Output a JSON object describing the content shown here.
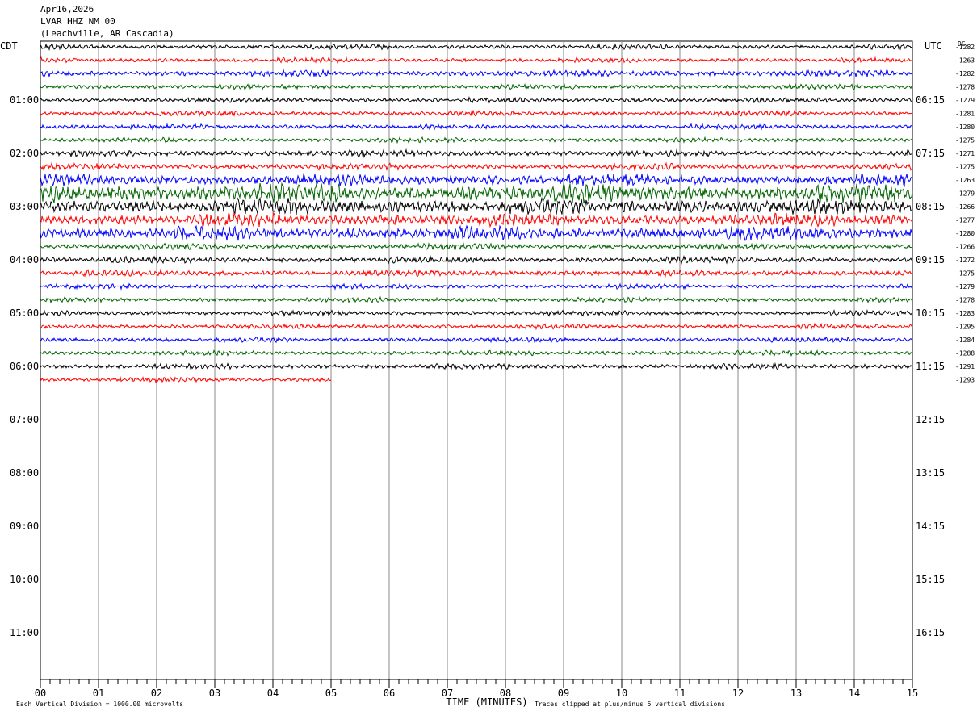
{
  "header": {
    "date": "Apr16,2026",
    "station": "LVAR HHZ NM 00",
    "location": "(Leachville, AR Cascadia)"
  },
  "chart_data": {
    "type": "line",
    "left_timezone_label": "CDT",
    "right_timezone_label": "UTC",
    "dc_label": "DC",
    "xlabel": "TIME (MINUTES)",
    "x_ticks": [
      "00",
      "01",
      "02",
      "03",
      "04",
      "05",
      "06",
      "07",
      "08",
      "09",
      "10",
      "11",
      "12",
      "13",
      "14",
      "15"
    ],
    "xlim": [
      0,
      15
    ],
    "left_hour_labels": [
      "01:00",
      "02:00",
      "03:00",
      "04:00",
      "05:00",
      "06:00",
      "07:00",
      "08:00",
      "09:00",
      "10:00",
      "11:00"
    ],
    "right_hour_labels": [
      "06:15",
      "07:15",
      "08:15",
      "09:15",
      "10:15",
      "11:15",
      "12:15",
      "13:15",
      "14:15",
      "15:15",
      "16:15"
    ],
    "trace_colors": [
      "#000000",
      "#ff0000",
      "#0000ff",
      "#006400"
    ],
    "dc_offsets": [
      "-1282",
      "-1263",
      "-1282",
      "-1278",
      "-1279",
      "-1281",
      "-1280",
      "-1275",
      "-1271",
      "-1275",
      "-1263",
      "-1279",
      "-1266",
      "-1277",
      "-1280",
      "-1266",
      "-1272",
      "-1275",
      "-1279",
      "-1278",
      "-1283",
      "-1295",
      "-1284",
      "-1288",
      "-1291",
      "-1293"
    ],
    "trace_count": 26,
    "last_trace_end_minute": 5,
    "trace_activity": [
      1,
      1,
      1.3,
      1,
      1,
      1,
      1,
      1,
      1.3,
      1.3,
      2.4,
      3.8,
      3.2,
      2.6,
      2.8,
      1.2,
      1.3,
      1.3,
      1,
      1,
      1,
      1,
      1,
      1,
      1.1,
      1
    ],
    "footer_left": "Each Vertical Division = 1000.00 microvolts",
    "footer_right": "Traces clipped at plus/minus 5 vertical divisions"
  }
}
